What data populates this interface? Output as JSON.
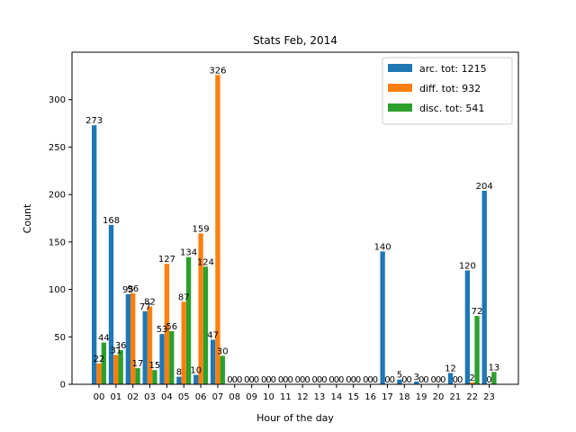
{
  "chart_data": {
    "type": "bar",
    "title": "Stats Feb, 2014",
    "xlabel": "Hour of the day",
    "ylabel": "Count",
    "ylim": [
      0,
      350
    ],
    "yticks": [
      0,
      50,
      100,
      150,
      200,
      250,
      300
    ],
    "grid": false,
    "legend_position": "top-right",
    "categories": [
      "00",
      "01",
      "02",
      "03",
      "04",
      "05",
      "06",
      "07",
      "08",
      "09",
      "10",
      "11",
      "12",
      "13",
      "14",
      "15",
      "16",
      "17",
      "18",
      "19",
      "20",
      "21",
      "22",
      "23"
    ],
    "series": [
      {
        "name": "arc. tot: 1215",
        "color": "#1f77b4",
        "values": [
          273,
          168,
          95,
          77,
          53,
          8,
          10,
          47,
          0,
          0,
          0,
          0,
          0,
          0,
          0,
          0,
          0,
          140,
          5,
          3,
          0,
          12,
          120,
          204
        ]
      },
      {
        "name": "diff. tot: 932",
        "color": "#ff7f0e",
        "values": [
          22,
          31,
          96,
          82,
          127,
          87,
          159,
          326,
          0,
          0,
          0,
          0,
          0,
          0,
          0,
          0,
          0,
          0,
          0,
          0,
          0,
          0,
          2,
          0
        ]
      },
      {
        "name": "disc. tot: 541",
        "color": "#2ca02c",
        "values": [
          44,
          36,
          17,
          15,
          56,
          134,
          124,
          30,
          0,
          0,
          0,
          0,
          0,
          0,
          0,
          0,
          0,
          0,
          0,
          0,
          0,
          0,
          72,
          13
        ]
      }
    ]
  }
}
